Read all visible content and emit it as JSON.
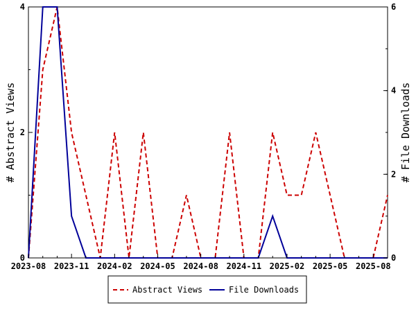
{
  "chart_data": {
    "type": "line",
    "x": [
      "2023-08",
      "2023-09",
      "2023-10",
      "2023-11",
      "2023-12",
      "2024-01",
      "2024-02",
      "2024-03",
      "2024-04",
      "2024-05",
      "2024-06",
      "2024-07",
      "2024-08",
      "2024-09",
      "2024-10",
      "2024-11",
      "2024-12",
      "2025-01",
      "2025-02",
      "2025-03",
      "2025-04",
      "2025-05",
      "2025-06",
      "2025-07",
      "2025-08",
      "2025-09"
    ],
    "x_tick_labels": [
      "2023-08",
      "2023-11",
      "2024-02",
      "2024-05",
      "2024-08",
      "2024-11",
      "2025-02",
      "2025-05",
      "2025-08"
    ],
    "series": [
      {
        "name": "Abstract Views",
        "axis": "left",
        "color": "#cc0000",
        "style": "dashed",
        "values": [
          0,
          3,
          4,
          2,
          1,
          0,
          2,
          0,
          2,
          0,
          0,
          1,
          0,
          0,
          2,
          0,
          0,
          2,
          1,
          1,
          2,
          1,
          0,
          0,
          0,
          1
        ]
      },
      {
        "name": "File Downloads",
        "axis": "right",
        "color": "#000099",
        "style": "solid",
        "values": [
          0,
          6,
          6,
          1,
          0,
          0,
          0,
          0,
          0,
          0,
          0,
          0,
          0,
          0,
          0,
          0,
          0,
          1,
          0,
          0,
          0,
          0,
          0,
          0,
          0,
          0
        ]
      }
    ],
    "ylabel_left": "# Abstract Views",
    "ylabel_right": "# File Downloads",
    "ylim_left": [
      0,
      4
    ],
    "ylim_right": [
      0,
      6
    ],
    "yticks_left": [
      "0",
      "2",
      "4"
    ],
    "yticks_right": [
      "0",
      "2",
      "4",
      "6"
    ],
    "legend_position": "bottom-center",
    "grid": false
  }
}
